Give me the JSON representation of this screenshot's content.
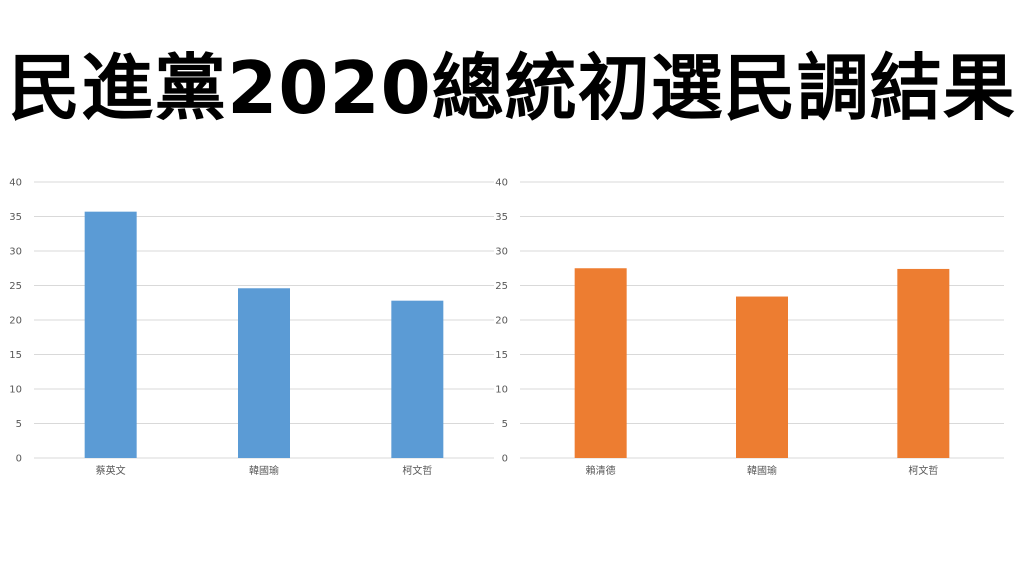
{
  "title": "民進黨2020總統初選民調結果",
  "chart_data": [
    {
      "type": "bar",
      "categories": [
        "蔡英文",
        "韓國瑜",
        "柯文哲"
      ],
      "values": [
        35.7,
        24.6,
        22.8
      ],
      "ylim": [
        0,
        40
      ],
      "yticks": [
        "0",
        "5",
        "10",
        "15",
        "20",
        "25",
        "30",
        "35",
        "40"
      ],
      "grid": true,
      "color": "#5b9bd5",
      "title": "",
      "xlabel": "",
      "ylabel": ""
    },
    {
      "type": "bar",
      "categories": [
        "賴清德",
        "韓國瑜",
        "柯文哲"
      ],
      "values": [
        27.5,
        23.4,
        27.4
      ],
      "ylim": [
        0,
        40
      ],
      "yticks": [
        "0",
        "5",
        "10",
        "15",
        "20",
        "25",
        "30",
        "35",
        "40"
      ],
      "grid": true,
      "color": "#ed7d31",
      "title": "",
      "xlabel": "",
      "ylabel": ""
    }
  ]
}
